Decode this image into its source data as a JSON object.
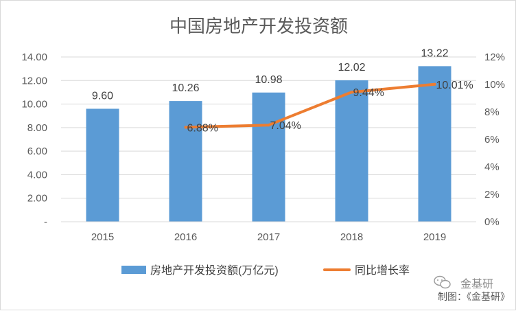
{
  "chart_data": {
    "type": "bar",
    "title": "中国房地产开发投资额",
    "categories": [
      "2015",
      "2016",
      "2017",
      "2018",
      "2019"
    ],
    "series": [
      {
        "name": "房地产开发投资额(万亿元)",
        "type": "bar",
        "axis": "left",
        "values": [
          9.6,
          10.26,
          10.98,
          12.02,
          13.22
        ],
        "labels": [
          "9.60",
          "10.26",
          "10.98",
          "12.02",
          "13.22"
        ],
        "color": "#5b9bd5"
      },
      {
        "name": "同比增长率",
        "type": "line",
        "axis": "right",
        "values": [
          null,
          6.88,
          7.04,
          9.44,
          10.01
        ],
        "labels": [
          "",
          "6.88%",
          "7.04%",
          "9.44%",
          "10.01%"
        ],
        "color": "#ed7d31"
      }
    ],
    "y_left": {
      "range": [
        0,
        14
      ],
      "ticks": [
        0,
        2,
        4,
        6,
        8,
        10,
        12,
        14
      ],
      "tick_labels": [
        "-",
        "2.00",
        "4.00",
        "6.00",
        "8.00",
        "10.00",
        "12.00",
        "14.00"
      ]
    },
    "y_right": {
      "range": [
        0,
        12
      ],
      "ticks": [
        0,
        2,
        4,
        6,
        8,
        10,
        12
      ],
      "tick_labels": [
        "0%",
        "2%",
        "4%",
        "6%",
        "8%",
        "10%",
        "12%"
      ]
    },
    "grid": true,
    "legend_position": "bottom"
  },
  "credit": "制图：《金基研》",
  "watermark": "金基研"
}
